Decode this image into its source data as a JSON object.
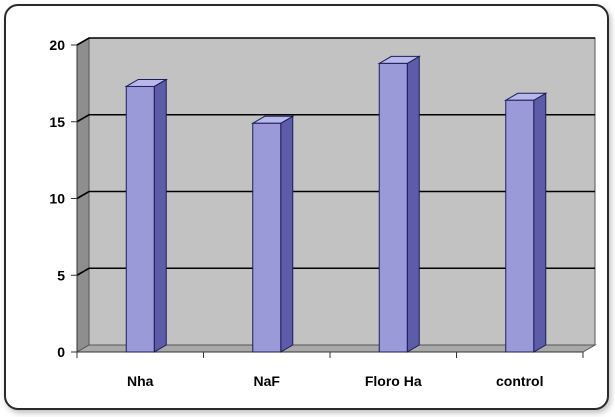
{
  "chart_data": {
    "type": "bar",
    "categories": [
      "Nha",
      "NaF",
      "Floro Ha",
      "control"
    ],
    "values": [
      17.3,
      14.9,
      18.8,
      16.4
    ],
    "ylim": [
      0,
      20
    ],
    "yticks": [
      0,
      5,
      10,
      15,
      20
    ],
    "grid": true,
    "style": "3d-column",
    "colors": {
      "bar_front": "#9a9ad8",
      "bar_side": "#5c5ca8",
      "bar_top": "#b8b8ea",
      "bar_outline": "#1c1c5a",
      "plot_back": "#c2c2c2",
      "plot_floor": "#a9a9a9",
      "plot_wall": "#8e8e8e",
      "gridline": "#000000"
    }
  }
}
